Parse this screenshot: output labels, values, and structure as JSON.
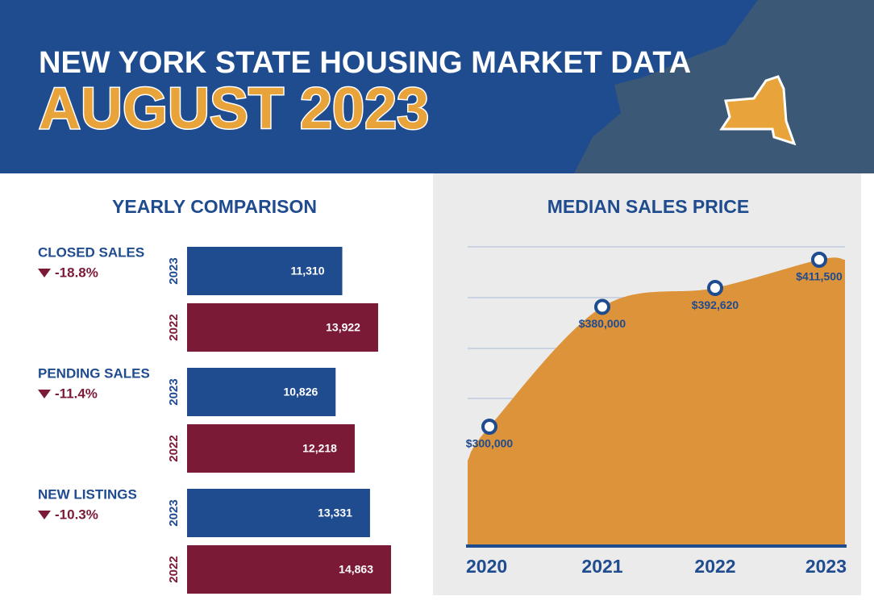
{
  "header": {
    "title": "NEW YORK STATE HOUSING MARKET DATA",
    "subtitle": "AUGUST 2023"
  },
  "chart_data": [
    {
      "type": "hbar",
      "title": "YEARLY COMPARISON",
      "categories": [
        "CLOSED SALES",
        "PENDING SALES",
        "NEW LISTINGS"
      ],
      "changes": {
        "values": [
          -18.8,
          -11.4,
          -10.3
        ],
        "value_labels": [
          "-18.8%",
          "-11.4%",
          "-10.3%"
        ],
        "color": "#7a1a36"
      },
      "series": [
        {
          "name": "2023",
          "color": "#1f4b8f",
          "values": [
            11310,
            10826,
            13331
          ],
          "value_labels": [
            "11,310",
            "10,826",
            "13,331"
          ]
        },
        {
          "name": "2022",
          "color": "#7a1a36",
          "values": [
            13922,
            12218,
            14863
          ],
          "value_labels": [
            "13,922",
            "12,218",
            "14,863"
          ]
        }
      ]
    },
    {
      "type": "area",
      "title": "MEDIAN SALES PRICE",
      "color": "#dc9339",
      "x": [
        "2020",
        "2021",
        "2022",
        "2023"
      ],
      "values": [
        300000,
        380000,
        392620,
        411500
      ],
      "value_labels": [
        "$300,000",
        "$380,000",
        "$392,620",
        "$411,500"
      ]
    }
  ]
}
